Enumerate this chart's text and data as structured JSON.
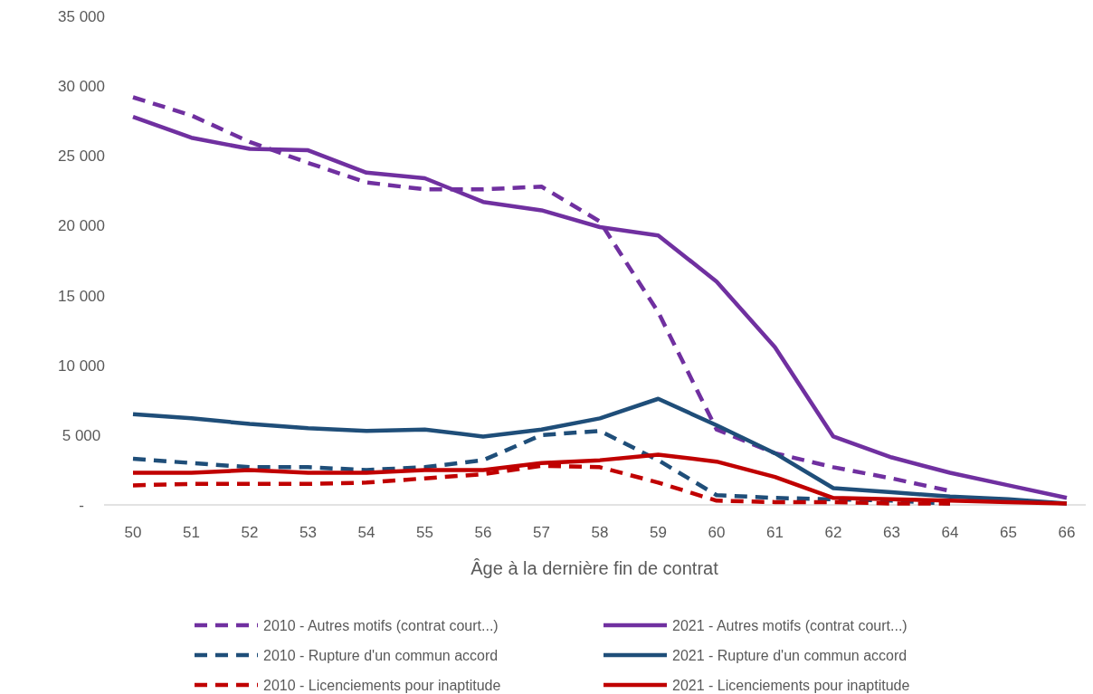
{
  "chart_data": {
    "type": "line",
    "xlabel": "Âge à la dernière fin de contrat",
    "categories": [
      "50",
      "51",
      "52",
      "53",
      "54",
      "55",
      "56",
      "57",
      "58",
      "59",
      "60",
      "61",
      "62",
      "63",
      "64",
      "65",
      "66"
    ],
    "ylim": [
      0,
      35000
    ],
    "yticks": [
      {
        "value": 0,
        "label": "-"
      },
      {
        "value": 5000,
        "label": "5 000"
      },
      {
        "value": 10000,
        "label": "10 000"
      },
      {
        "value": 15000,
        "label": "15 000"
      },
      {
        "value": 20000,
        "label": "20 000"
      },
      {
        "value": 25000,
        "label": "25 000"
      },
      {
        "value": 30000,
        "label": "30 000"
      },
      {
        "value": 35000,
        "label": "35 000"
      }
    ],
    "legend": "bottom",
    "grid": false,
    "marker": "none",
    "series": [
      {
        "name": "2010 - Autres motifs (contrat court...)",
        "color": "#7030a0",
        "line_style": "dashed",
        "values": [
          29200,
          27900,
          26000,
          24500,
          23100,
          22600,
          22600,
          22800,
          20300,
          13800,
          5400,
          3700,
          2700,
          1900,
          1000,
          null,
          null
        ]
      },
      {
        "name": "2021 - Autres motifs (contrat court...)",
        "color": "#7030a0",
        "line_style": "solid",
        "values": [
          27800,
          26300,
          25500,
          25400,
          23800,
          23400,
          21700,
          21100,
          19900,
          19300,
          16000,
          11300,
          4900,
          3400,
          2300,
          1400,
          500
        ]
      },
      {
        "name": "2010 - Rupture d'un commun accord",
        "color": "#1f4e79",
        "line_style": "dashed",
        "values": [
          3300,
          3000,
          2700,
          2700,
          2500,
          2700,
          3200,
          5000,
          5300,
          3200,
          700,
          500,
          400,
          300,
          100,
          null,
          null
        ]
      },
      {
        "name": "2021 - Rupture d'un commun accord",
        "color": "#1f4e79",
        "line_style": "solid",
        "values": [
          6500,
          6200,
          5800,
          5500,
          5300,
          5400,
          4900,
          5400,
          6200,
          7600,
          5700,
          3700,
          1200,
          900,
          600,
          400,
          100
        ]
      },
      {
        "name": "2010 - Licenciements pour inaptitude",
        "color": "#c00000",
        "line_style": "dashed",
        "values": [
          1400,
          1500,
          1500,
          1500,
          1600,
          1900,
          2200,
          2800,
          2700,
          1600,
          300,
          200,
          200,
          100,
          100,
          null,
          null
        ]
      },
      {
        "name": "2021 - Licenciements pour inaptitude",
        "color": "#c00000",
        "line_style": "solid",
        "values": [
          2300,
          2300,
          2500,
          2300,
          2300,
          2500,
          2500,
          3000,
          3200,
          3600,
          3100,
          2000,
          500,
          400,
          300,
          200,
          100
        ]
      }
    ]
  }
}
